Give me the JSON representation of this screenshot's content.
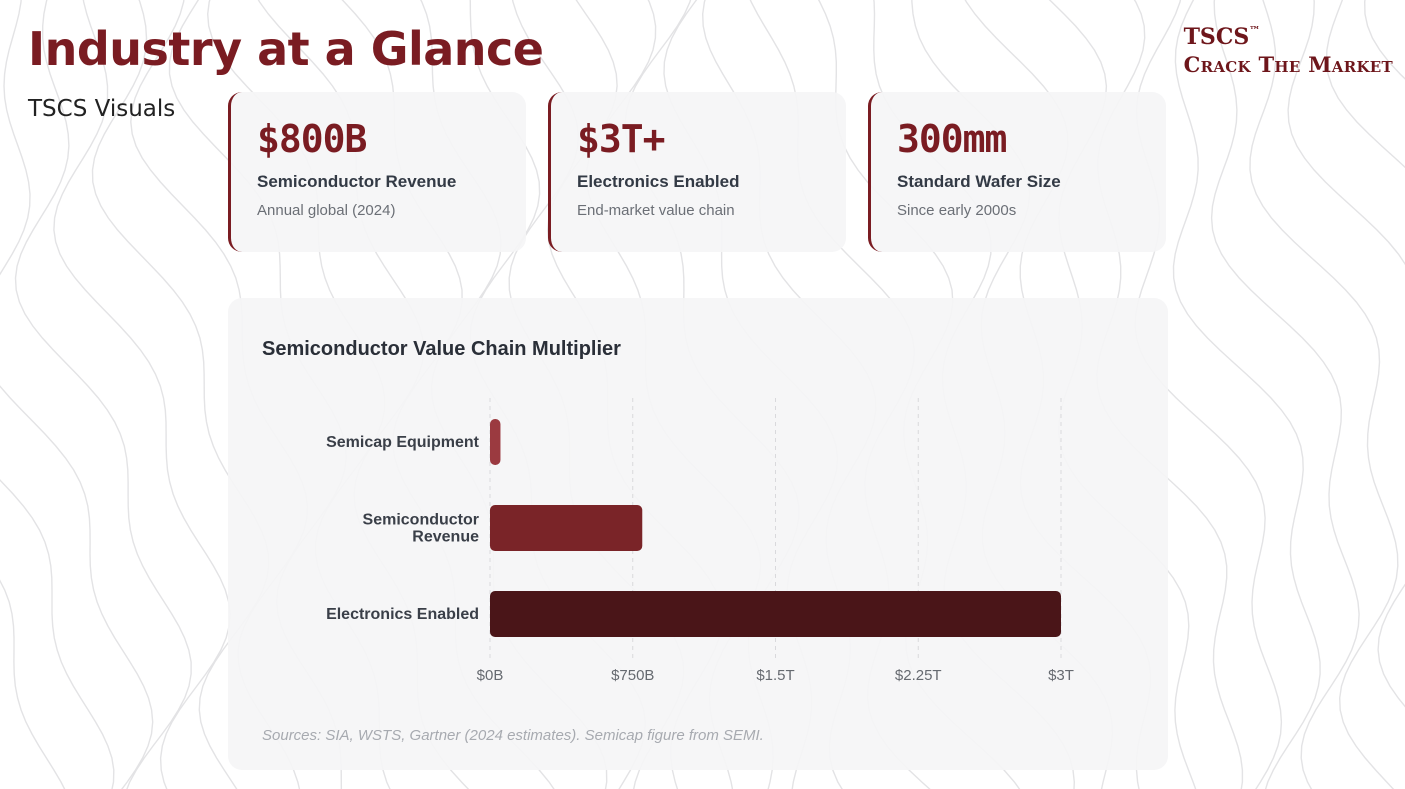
{
  "header": {
    "title": "Industry at a Glance",
    "subtitle": "TSCS Visuals"
  },
  "brand": {
    "line1": "TSCS",
    "trademark": "™",
    "line2": "Crack The Market"
  },
  "stats": [
    {
      "value": "$800B",
      "label": "Semiconductor Revenue",
      "sub": "Annual global (2024)"
    },
    {
      "value": "$3T+",
      "label": "Electronics Enabled",
      "sub": "End-market value chain"
    },
    {
      "value": "300mm",
      "label": "Standard Wafer Size",
      "sub": "Since early 2000s"
    }
  ],
  "chart_data": {
    "type": "bar",
    "orientation": "horizontal",
    "title": "Semiconductor Value Chain Multiplier",
    "categories": [
      "Semicap Equipment",
      "Semiconductor Revenue",
      "Electronics Enabled"
    ],
    "category_lines": [
      [
        "Semicap Equipment"
      ],
      [
        "Semiconductor",
        "Revenue"
      ],
      [
        "Electronics Enabled"
      ]
    ],
    "values": [
      55,
      800,
      3000
    ],
    "value_unit": "billions USD",
    "xlim": [
      0,
      3000
    ],
    "x_ticks": [
      0,
      750,
      1500,
      2250,
      3000
    ],
    "x_tick_labels": [
      "$0B",
      "$750B",
      "$1.5T",
      "$2.25T",
      "$3T"
    ],
    "colors": [
      "#9b3a40",
      "#7a2428",
      "#4a1518"
    ],
    "grid": true
  },
  "footer": {
    "sources": "Sources: SIA, WSTS, Gartner (2024 estimates). Semicap figure from SEMI."
  }
}
